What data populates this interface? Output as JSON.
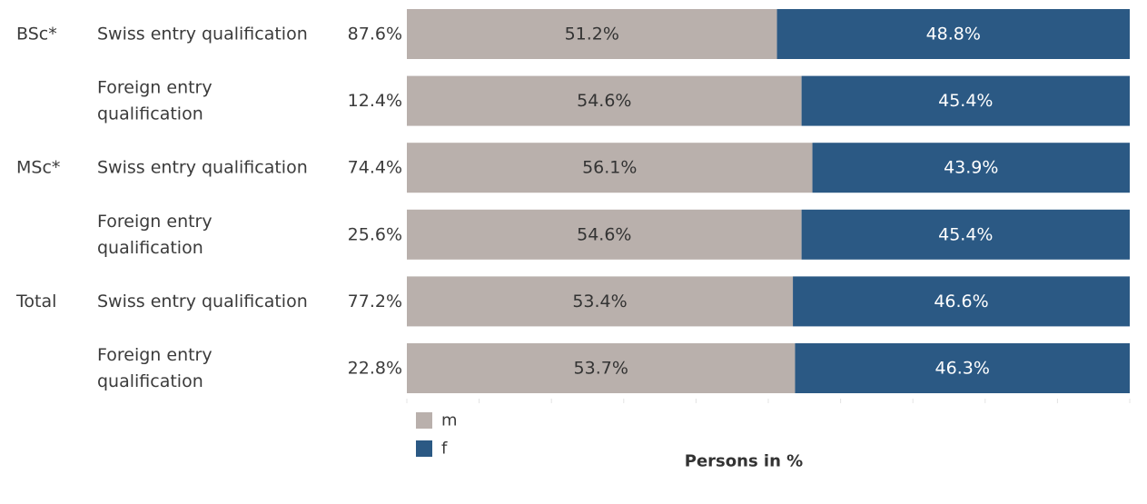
{
  "chart_data": {
    "type": "bar",
    "orientation": "horizontal",
    "stacked": true,
    "percent_stacked": true,
    "xlabel": "Persons in %",
    "xlim": [
      0,
      100
    ],
    "grid": false,
    "legend_placement": "bottom-left",
    "rows": [
      {
        "group": "BSc*",
        "category": [
          "Swiss entry qualification"
        ],
        "share": "87.6%"
      },
      {
        "group": "",
        "category": [
          "Foreign entry",
          "qualification"
        ],
        "share": "12.4%"
      },
      {
        "group": "MSc*",
        "category": [
          "Swiss entry qualification"
        ],
        "share": "74.4%"
      },
      {
        "group": "",
        "category": [
          "Foreign entry",
          "qualification"
        ],
        "share": "25.6%"
      },
      {
        "group": "Total",
        "category": [
          "Swiss entry qualification"
        ],
        "share": "77.2%"
      },
      {
        "group": "",
        "category": [
          "Foreign entry",
          "qualification"
        ],
        "share": "22.8%"
      }
    ],
    "series": [
      {
        "name": "m",
        "color": "#b9b0ac",
        "values": [
          51.2,
          54.6,
          56.1,
          54.6,
          53.4,
          53.7
        ],
        "labels": [
          "51.2%",
          "54.6%",
          "56.1%",
          "54.6%",
          "53.4%",
          "53.7%"
        ]
      },
      {
        "name": "f",
        "color": "#2b5984",
        "values": [
          48.8,
          45.4,
          43.9,
          45.4,
          46.6,
          46.3
        ],
        "labels": [
          "48.8%",
          "45.4%",
          "43.9%",
          "45.4%",
          "46.6%",
          "46.3%"
        ]
      }
    ]
  }
}
